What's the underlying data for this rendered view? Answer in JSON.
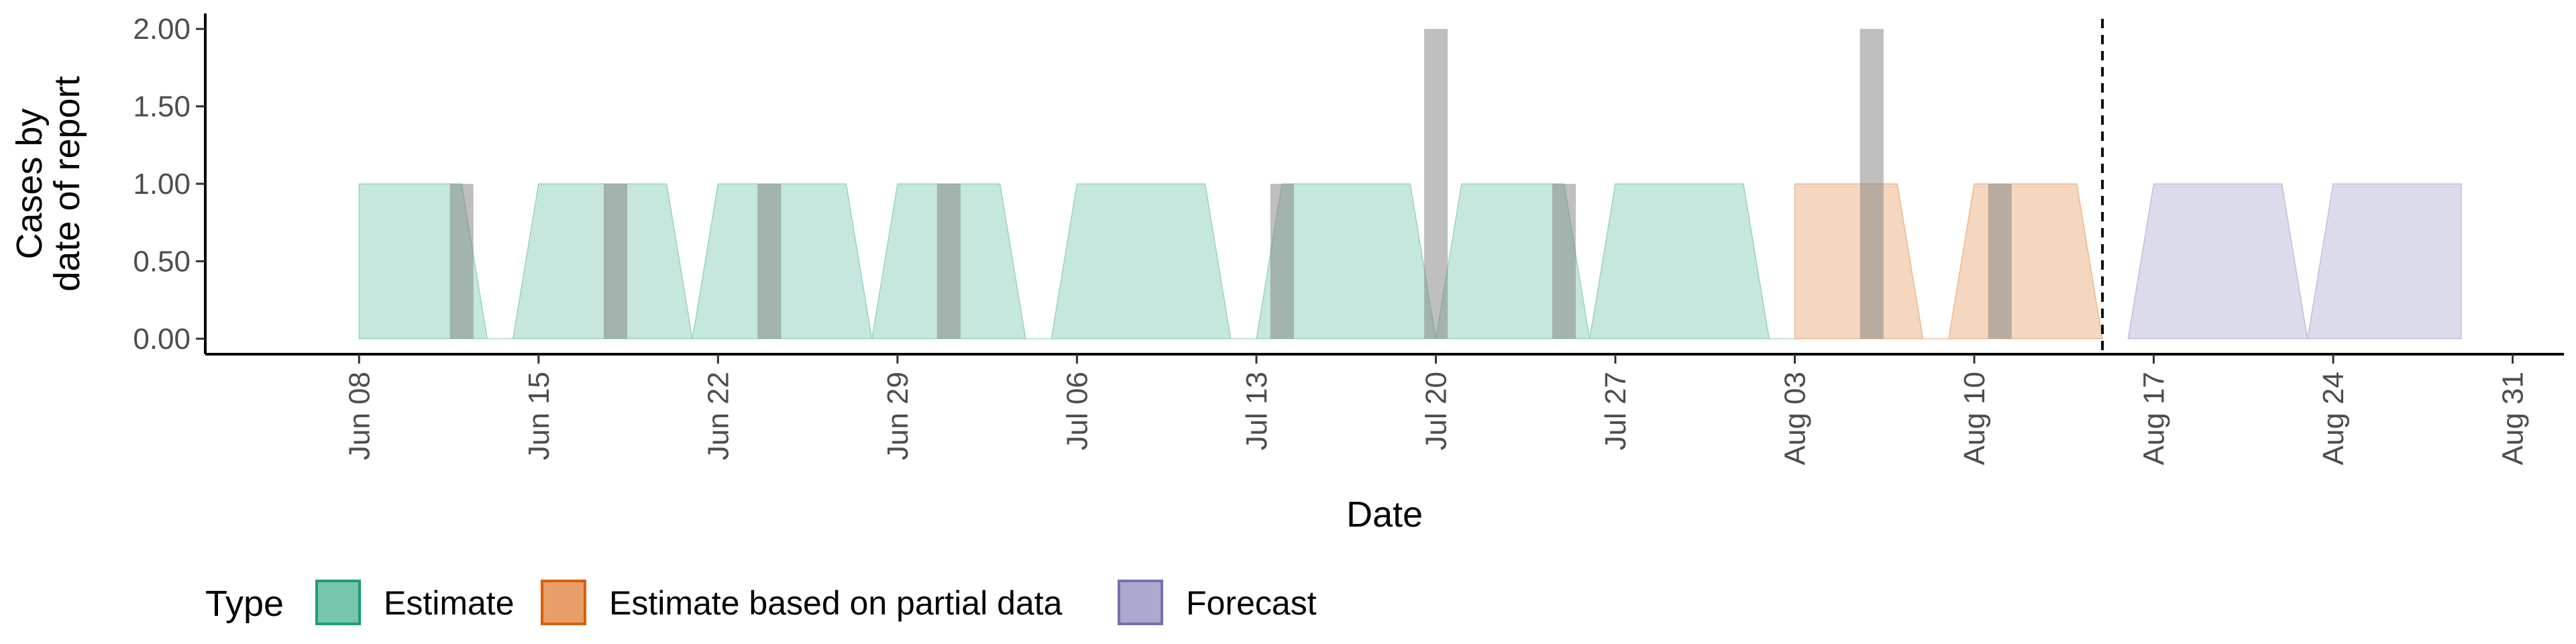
{
  "chart_data": {
    "type": "area",
    "title": "",
    "xlabel": "Date",
    "ylabel_lines": [
      "Cases by",
      "date of report"
    ],
    "ylim": [
      -0.1,
      2.1
    ],
    "yticks": [
      0,
      0.5,
      1,
      1.5,
      2
    ],
    "ytick_labels": [
      "0.00",
      "0.50",
      "1.00",
      "1.50",
      "2.00"
    ],
    "x_start": "2020-06-02",
    "x_end": "2020-09-02",
    "xticks": [
      "2020-06-08",
      "2020-06-15",
      "2020-06-22",
      "2020-06-29",
      "2020-07-06",
      "2020-07-13",
      "2020-07-20",
      "2020-07-27",
      "2020-08-03",
      "2020-08-10",
      "2020-08-17",
      "2020-08-24",
      "2020-08-31"
    ],
    "xtick_labels": [
      "Jun 08",
      "Jun 15",
      "Jun 22",
      "Jun 29",
      "Jul 06",
      "Jul 13",
      "Jul 20",
      "Jul 27",
      "Aug 03",
      "Aug 10",
      "Aug 17",
      "Aug 24",
      "Aug 31"
    ],
    "forecast_line_date": "2020-08-15",
    "legend_title": "Type",
    "legend": [
      {
        "name": "Estimate",
        "fill": "#1b9e77"
      },
      {
        "name": "Estimate based on partial data",
        "fill": "#d95f02"
      },
      {
        "name": "Forecast",
        "fill": "#7570b3"
      }
    ],
    "reported_cases": [
      {
        "date": "2020-06-12",
        "value": 1
      },
      {
        "date": "2020-06-18",
        "value": 1
      },
      {
        "date": "2020-06-24",
        "value": 1
      },
      {
        "date": "2020-07-01",
        "value": 1
      },
      {
        "date": "2020-07-14",
        "value": 1
      },
      {
        "date": "2020-07-20",
        "value": 2
      },
      {
        "date": "2020-07-25",
        "value": 1
      },
      {
        "date": "2020-08-06",
        "value": 2
      },
      {
        "date": "2020-08-11",
        "value": 1
      }
    ],
    "series": [
      {
        "name": "Estimate",
        "values": [
          [
            "2020-06-08",
            0
          ],
          [
            "2020-06-08",
            1
          ],
          [
            "2020-06-12",
            1
          ],
          [
            "2020-06-13",
            0
          ],
          [
            "2020-06-14",
            0
          ],
          [
            "2020-06-15",
            1
          ],
          [
            "2020-06-20",
            1
          ],
          [
            "2020-06-21",
            0
          ],
          [
            "2020-06-22",
            1
          ],
          [
            "2020-06-27",
            1
          ],
          [
            "2020-06-28",
            0
          ],
          [
            "2020-06-29",
            1
          ],
          [
            "2020-07-03",
            1
          ],
          [
            "2020-07-04",
            0
          ],
          [
            "2020-07-05",
            0
          ],
          [
            "2020-07-06",
            1
          ],
          [
            "2020-07-11",
            1
          ],
          [
            "2020-07-12",
            0
          ],
          [
            "2020-07-13",
            0
          ],
          [
            "2020-07-14",
            1
          ],
          [
            "2020-07-19",
            1
          ],
          [
            "2020-07-20",
            0
          ],
          [
            "2020-07-21",
            1
          ],
          [
            "2020-07-25",
            1
          ],
          [
            "2020-07-26",
            0
          ],
          [
            "2020-07-27",
            1
          ],
          [
            "2020-08-01",
            1
          ],
          [
            "2020-08-02",
            0
          ],
          [
            "2020-08-03",
            0
          ]
        ]
      },
      {
        "name": "Estimate based on partial data",
        "values": [
          [
            "2020-08-03",
            0
          ],
          [
            "2020-08-03",
            1
          ],
          [
            "2020-08-07",
            1
          ],
          [
            "2020-08-08",
            0
          ],
          [
            "2020-08-09",
            0
          ],
          [
            "2020-08-10",
            1
          ],
          [
            "2020-08-14",
            1
          ],
          [
            "2020-08-15",
            0
          ]
        ]
      },
      {
        "name": "Forecast",
        "values": [
          [
            "2020-08-16",
            0
          ],
          [
            "2020-08-17",
            1
          ],
          [
            "2020-08-22",
            1
          ],
          [
            "2020-08-23",
            0
          ],
          [
            "2020-08-24",
            1
          ],
          [
            "2020-08-29",
            1
          ],
          [
            "2020-08-29",
            0
          ]
        ]
      }
    ]
  }
}
